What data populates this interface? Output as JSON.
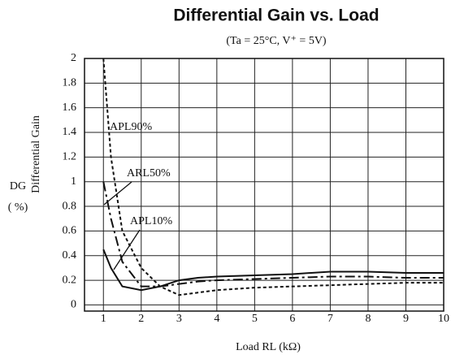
{
  "chart_data": {
    "type": "line",
    "title": "Differential Gain vs. Load",
    "subtitle": "(Ta = 25°C, V⁺ = 5V)",
    "y_label": "Differential Gain",
    "y_label2": "DG",
    "y_unit": "( %)",
    "x_label": "Load RL (kΩ)",
    "x": [
      1,
      1.2,
      1.5,
      2,
      2.5,
      3,
      3.5,
      4,
      5,
      6,
      7,
      8,
      9,
      10
    ],
    "series": [
      {
        "name": "APL90%",
        "color": "#111111",
        "dash": "4,3",
        "values": [
          2.0,
          1.2,
          0.6,
          0.3,
          0.15,
          0.08,
          0.1,
          0.12,
          0.14,
          0.15,
          0.16,
          0.17,
          0.18,
          0.18
        ]
      },
      {
        "name": "ARL50%",
        "color": "#111111",
        "dash": "12,4,3,4",
        "values": [
          1.0,
          0.7,
          0.35,
          0.15,
          0.15,
          0.17,
          0.19,
          0.2,
          0.21,
          0.22,
          0.23,
          0.23,
          0.22,
          0.22
        ]
      },
      {
        "name": "APL10%",
        "color": "#111111",
        "dash": "none",
        "values": [
          0.45,
          0.3,
          0.15,
          0.12,
          0.15,
          0.2,
          0.22,
          0.23,
          0.24,
          0.25,
          0.27,
          0.27,
          0.26,
          0.26
        ]
      }
    ],
    "xlim": [
      0.5,
      10
    ],
    "xticks": [
      1,
      2,
      3,
      4,
      5,
      6,
      7,
      8,
      9,
      10
    ],
    "ylim": [
      -0.05,
      2
    ],
    "yticks": [
      0,
      0.2,
      0.4,
      0.6,
      0.8,
      1,
      1.2,
      1.4,
      1.6,
      1.8,
      2
    ],
    "grid": true
  }
}
